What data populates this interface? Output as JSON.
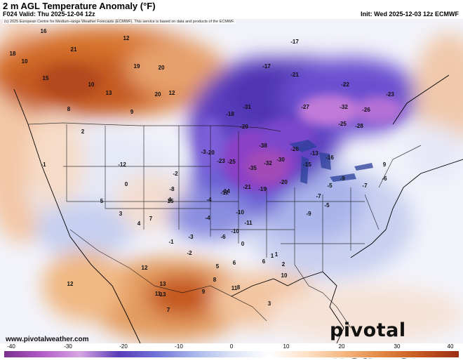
{
  "header": {
    "title": "2 m AGL Temperature Anomaly (°F)",
    "valid": "F024 Valid: Thu 2025-12-04 12z",
    "init": "Init: Wed 2025-12-03 12z ECMWF"
  },
  "copyright": "(c) 2025 European Centre for Medium-range Weather Forecasts (ECMWF). This service is based on data and products of the ECMWF.",
  "footer": {
    "site": "www.pivotalweather.com",
    "logo": "pivotal weather"
  },
  "colorbar": {
    "ticks": [
      "-40",
      "-30",
      "-20",
      "-10",
      "0",
      "10",
      "20",
      "30",
      "40"
    ],
    "colors": [
      "#7b2f8e",
      "#b25cc8",
      "#d8a6e3",
      "#5a3bb8",
      "#6f70d6",
      "#a7b6ea",
      "#dbe3f6",
      "#ffffff",
      "#fde0c6",
      "#f5b57e",
      "#e08540",
      "#c4561f",
      "#9c2d17"
    ]
  },
  "labels": [
    {
      "t": "16"
    },
    {
      "t": "18"
    },
    {
      "t": "21"
    },
    {
      "t": "12"
    },
    {
      "t": "10"
    },
    {
      "t": "20"
    },
    {
      "t": "19"
    },
    {
      "t": "10"
    },
    {
      "t": "15"
    },
    {
      "t": "13"
    },
    {
      "t": "20"
    },
    {
      "t": "8"
    },
    {
      "t": "9"
    },
    {
      "t": "12"
    },
    {
      "t": "-17"
    },
    {
      "t": "-21"
    },
    {
      "t": "-17"
    },
    {
      "t": "-22"
    },
    {
      "t": "-32"
    },
    {
      "t": "-23"
    },
    {
      "t": "-27"
    },
    {
      "t": "-28"
    },
    {
      "t": "-25"
    },
    {
      "t": "-26"
    },
    {
      "t": "-31"
    },
    {
      "t": "-38"
    },
    {
      "t": "-35"
    },
    {
      "t": "-32"
    },
    {
      "t": "-30"
    },
    {
      "t": "-25"
    },
    {
      "t": "-20"
    },
    {
      "t": "-23"
    },
    {
      "t": "-26"
    },
    {
      "t": "-18"
    },
    {
      "t": "-20"
    },
    {
      "t": "-13"
    },
    {
      "t": "-15"
    },
    {
      "t": "-16"
    },
    {
      "t": "-21"
    },
    {
      "t": "-19"
    },
    {
      "t": "-11"
    },
    {
      "t": "-20"
    },
    {
      "t": "-14"
    },
    {
      "t": "-10"
    },
    {
      "t": "-9"
    },
    {
      "t": "-7"
    },
    {
      "t": "-6"
    },
    {
      "t": "-5"
    },
    {
      "t": "-4"
    },
    {
      "t": "-3"
    },
    {
      "t": "-2"
    },
    {
      "t": "-1"
    },
    {
      "t": "0"
    },
    {
      "t": "1"
    },
    {
      "t": "2"
    },
    {
      "t": "3"
    },
    {
      "t": "4"
    },
    {
      "t": "5"
    },
    {
      "t": "6"
    },
    {
      "t": "7"
    },
    {
      "t": "8"
    },
    {
      "t": "9"
    },
    {
      "t": "11"
    },
    {
      "t": "12"
    },
    {
      "t": "13"
    },
    {
      "t": "15"
    },
    {
      "t": "-8"
    },
    {
      "t": "-12"
    },
    {
      "t": "-11"
    },
    {
      "t": "-10"
    },
    {
      "t": "-6"
    },
    {
      "t": "-4"
    },
    {
      "t": "-3"
    },
    {
      "t": "-7"
    },
    {
      "t": "-5"
    },
    {
      "t": "-9"
    },
    {
      "t": "-2"
    },
    {
      "t": "-1"
    },
    {
      "t": "0"
    },
    {
      "t": "2"
    },
    {
      "t": "1"
    },
    {
      "t": "3"
    },
    {
      "t": "4"
    },
    {
      "t": "10"
    },
    {
      "t": "11"
    },
    {
      "t": "12"
    },
    {
      "t": "13"
    },
    {
      "t": "7"
    },
    {
      "t": "8"
    },
    {
      "t": "9"
    },
    {
      "t": "5"
    },
    {
      "t": "6"
    }
  ]
}
